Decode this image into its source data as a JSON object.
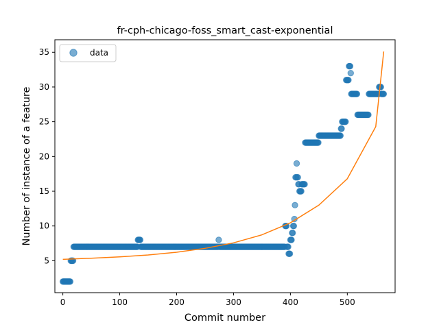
{
  "chart_data": {
    "type": "scatter",
    "title": "fr-cph-chicago-foss_smart_cast-exponential",
    "xlabel": "Commit number",
    "ylabel": "Number of instance of a feature",
    "xlim": [
      -14,
      584
    ],
    "ylim": [
      0.4,
      36.8
    ],
    "xticks": [
      0,
      100,
      200,
      300,
      400,
      500
    ],
    "yticks": [
      5,
      10,
      15,
      20,
      25,
      30,
      35
    ],
    "grid": false,
    "legend": {
      "placement": "top-left",
      "entries": [
        "data"
      ]
    },
    "colors": {
      "data": "#1f77b4",
      "fit": "#ff7f0e"
    },
    "series": [
      {
        "name": "data",
        "kind": "scatter",
        "runs": [
          [
            0,
            13,
            2
          ],
          [
            14,
            18,
            5
          ],
          [
            19,
            131,
            7
          ],
          [
            132,
            136,
            8
          ],
          [
            137,
            273,
            7
          ],
          [
            274,
            274,
            8
          ],
          [
            275,
            390,
            7
          ],
          [
            391,
            393,
            10
          ],
          [
            394,
            396,
            7
          ],
          [
            397,
            399,
            6
          ],
          [
            400,
            402,
            8
          ],
          [
            403,
            404,
            9
          ],
          [
            405,
            406,
            10
          ],
          [
            407,
            407,
            11
          ],
          [
            408,
            408,
            13
          ],
          [
            409,
            410,
            17
          ],
          [
            411,
            411,
            19
          ],
          [
            412,
            413,
            17
          ],
          [
            414,
            415,
            16
          ],
          [
            416,
            419,
            15
          ],
          [
            420,
            425,
            16
          ],
          [
            426,
            449,
            22
          ],
          [
            450,
            488,
            23
          ],
          [
            489,
            490,
            24
          ],
          [
            491,
            497,
            25
          ],
          [
            498,
            502,
            31
          ],
          [
            503,
            505,
            33
          ],
          [
            506,
            506,
            32
          ],
          [
            507,
            517,
            29
          ],
          [
            518,
            537,
            26
          ],
          [
            538,
            555,
            29
          ],
          [
            556,
            559,
            30
          ],
          [
            560,
            564,
            29
          ]
        ]
      },
      {
        "kind": "line",
        "x": [
          0,
          50,
          100,
          150,
          200,
          250,
          300,
          350,
          400,
          450,
          500,
          550,
          564
        ],
        "y": [
          5.2,
          5.36,
          5.56,
          5.83,
          6.22,
          6.78,
          7.57,
          8.73,
          10.46,
          13.0,
          16.8,
          24.3,
          35.1
        ]
      }
    ]
  }
}
